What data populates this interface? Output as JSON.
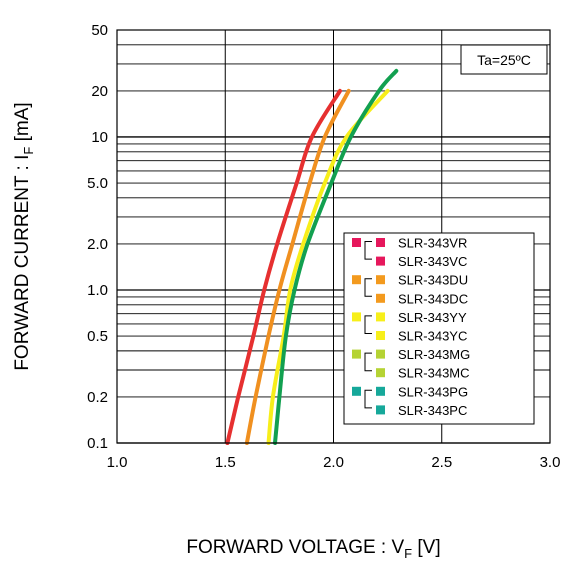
{
  "chart_data": {
    "type": "line",
    "title": "",
    "annotation": "Ta=25ºC",
    "xlabel_main": "FORWARD VOLTAGE : V",
    "xlabel_sub": "F",
    "xlabel_unit": " [V]",
    "ylabel_main": "FORWARD CURRENT : I",
    "ylabel_sub": "F",
    "ylabel_unit": " [mA]",
    "x_scale": "linear",
    "y_scale": "log",
    "xlim": [
      1.0,
      3.0
    ],
    "ylim": [
      0.1,
      50
    ],
    "x_ticks": [
      1.0,
      1.5,
      2.0,
      2.5,
      3.0
    ],
    "x_tick_labels": [
      "1.0",
      "1.5",
      "2.0",
      "2.5",
      "3.0"
    ],
    "y_ticks": [
      0.1,
      0.2,
      0.5,
      1.0,
      2.0,
      5.0,
      10,
      20,
      50
    ],
    "y_tick_labels": [
      "0.1",
      "0.2",
      "0.5",
      "1.0",
      "2.0",
      "5.0",
      "10",
      "20",
      "50"
    ],
    "grid": true,
    "legend_position": "center-right",
    "legend": [
      {
        "label": "SLR-343VR",
        "color": "#e6175c",
        "group": 1
      },
      {
        "label": "SLR-343VC",
        "color": "#e6175c",
        "group": 1
      },
      {
        "label": "SLR-343DU",
        "color": "#f39a1e",
        "group": 2
      },
      {
        "label": "SLR-343DC",
        "color": "#f39a1e",
        "group": 2
      },
      {
        "label": "SLR-343YY",
        "color": "#f7ef1a",
        "group": 3
      },
      {
        "label": "SLR-343YC",
        "color": "#f7ef1a",
        "group": 3
      },
      {
        "label": "SLR-343MG",
        "color": "#b5d334",
        "group": 4
      },
      {
        "label": "SLR-343MC",
        "color": "#b5d334",
        "group": 4
      },
      {
        "label": "SLR-343PG",
        "color": "#16a89a",
        "group": 5
      },
      {
        "label": "SLR-343PC",
        "color": "#16a89a",
        "group": 5
      }
    ],
    "series": [
      {
        "color": "#e63030",
        "points": [
          [
            1.51,
            0.1
          ],
          [
            1.56,
            0.2
          ],
          [
            1.63,
            0.5
          ],
          [
            1.68,
            1.0
          ],
          [
            1.74,
            2.0
          ],
          [
            1.83,
            5.0
          ],
          [
            1.9,
            10
          ],
          [
            2.03,
            20
          ]
        ]
      },
      {
        "color": "#f09020",
        "points": [
          [
            1.6,
            0.1
          ],
          [
            1.64,
            0.2
          ],
          [
            1.7,
            0.5
          ],
          [
            1.75,
            1.0
          ],
          [
            1.81,
            2.0
          ],
          [
            1.89,
            5.0
          ],
          [
            1.96,
            10
          ],
          [
            2.07,
            20
          ]
        ]
      },
      {
        "color": "#f7ee1a",
        "points": [
          [
            1.7,
            0.1
          ],
          [
            1.72,
            0.2
          ],
          [
            1.77,
            0.5
          ],
          [
            1.8,
            1.0
          ],
          [
            1.86,
            2.0
          ],
          [
            1.96,
            5.0
          ],
          [
            2.06,
            10
          ],
          [
            2.25,
            20
          ]
        ]
      },
      {
        "color": "#12a050",
        "points": [
          [
            1.73,
            0.1
          ],
          [
            1.75,
            0.2
          ],
          [
            1.78,
            0.5
          ],
          [
            1.82,
            1.0
          ],
          [
            1.88,
            2.0
          ],
          [
            1.99,
            5.0
          ],
          [
            2.08,
            10
          ],
          [
            2.21,
            20
          ],
          [
            2.29,
            27
          ]
        ]
      }
    ]
  }
}
